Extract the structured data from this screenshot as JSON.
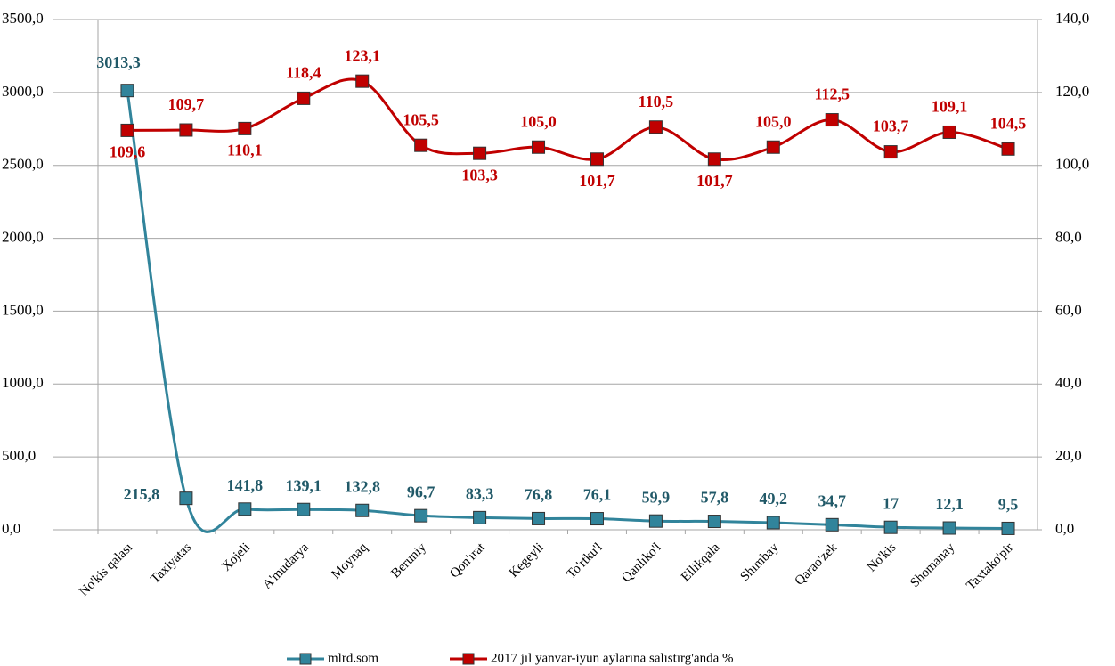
{
  "chart_data": {
    "type": "line",
    "categories": [
      "No'kis qalası",
      "Taxiyatas",
      "Xojeli",
      "A'mudarya",
      "Moynaq",
      "Beruniy",
      "Qon'ırat",
      "Kegeyli",
      "To'rtku'l",
      "Qanlıko'l",
      "Ellikqala",
      "Shımbay",
      "Qarao'zek",
      "No'kis",
      "Shomanay",
      "Taxtako'pir"
    ],
    "series": [
      {
        "name": "mlrd.som",
        "color": "#31849b",
        "values": [
          3013.3,
          215.8,
          141.8,
          139.1,
          132.8,
          96.7,
          83.3,
          76.8,
          76.1,
          59.9,
          57.8,
          49.2,
          34.7,
          17,
          12.1,
          9.5
        ],
        "value_labels": [
          "3013,3",
          "215,8",
          "141,8",
          "139,1",
          "132,8",
          "96,7",
          "83,3",
          "76,8",
          "76,1",
          "59,9",
          "57,8",
          "49,2",
          "34,7",
          "17",
          "12,1",
          "9,5"
        ]
      },
      {
        "name": "2017 jıl yanvar-iyun aylarına salıstırg'anda %",
        "color": "#c00000",
        "axis": "y2",
        "values": [
          109.6,
          109.7,
          110.1,
          118.4,
          123.1,
          105.5,
          103.3,
          105.0,
          101.7,
          110.5,
          101.7,
          105.0,
          112.5,
          103.7,
          109.1,
          104.5
        ],
        "value_labels": [
          "109,6",
          "109,7",
          "110,1",
          "118,4",
          "123,1",
          "105,5",
          "103,3",
          "105,0",
          "101,7",
          "110,5",
          "101,7",
          "105,0",
          "112,5",
          "103,7",
          "109,1",
          "104,5"
        ]
      }
    ],
    "ylim": [
      0,
      3500
    ],
    "yticks": [
      {
        "value": 0,
        "label": "0,0"
      },
      {
        "value": 500,
        "label": "500,0"
      },
      {
        "value": 1000,
        "label": "1000,0"
      },
      {
        "value": 1500,
        "label": "1500,0"
      },
      {
        "value": 2000,
        "label": "2000,0"
      },
      {
        "value": 2500,
        "label": "2500,0"
      },
      {
        "value": 3000,
        "label": "3000,0"
      },
      {
        "value": 3500,
        "label": "3500,0"
      }
    ],
    "y2lim": [
      0,
      140
    ],
    "y2ticks": [
      {
        "value": 0,
        "label": "0,0"
      },
      {
        "value": 20,
        "label": "20,0"
      },
      {
        "value": 40,
        "label": "40,0"
      },
      {
        "value": 60,
        "label": "60,0"
      },
      {
        "value": 80,
        "label": "80,0"
      },
      {
        "value": 100,
        "label": "100,0"
      },
      {
        "value": 120,
        "label": "120,0"
      },
      {
        "value": 140,
        "label": "140,0"
      }
    ],
    "grid": true,
    "legend": "bottom",
    "smooth": true
  }
}
